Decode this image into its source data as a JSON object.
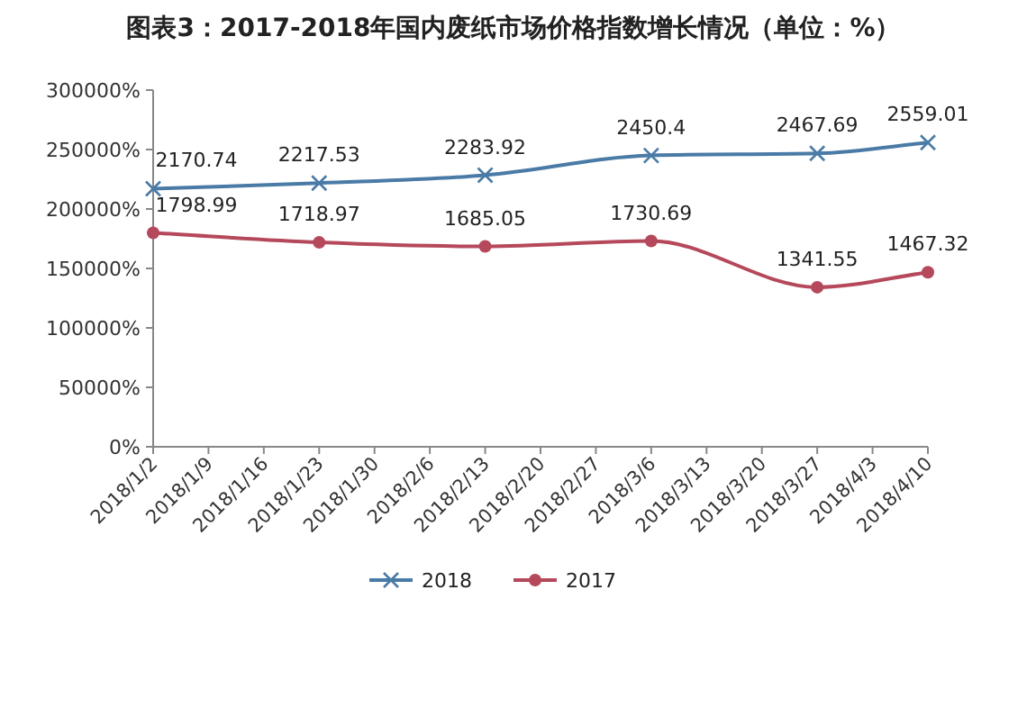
{
  "chart_data": {
    "type": "line",
    "title": "图表3：2017-2018年国内废纸市场价格指数增长情况（单位：%）",
    "x": [
      "2018-01-02",
      "2018-01-23",
      "2018-02-13",
      "2018-03-06",
      "2018-03-27",
      "2018-04-10"
    ],
    "xlim": [
      "2018-01-02",
      "2018-04-10"
    ],
    "xticks": [
      {
        "value": "2018-01-02",
        "label": "2018/1/2"
      },
      {
        "value": "2018-01-09",
        "label": "2018/1/9"
      },
      {
        "value": "2018-01-16",
        "label": "2018/1/16"
      },
      {
        "value": "2018-01-23",
        "label": "2018/1/23"
      },
      {
        "value": "2018-01-30",
        "label": "2018/1/30"
      },
      {
        "value": "2018-02-06",
        "label": "2018/2/6"
      },
      {
        "value": "2018-02-13",
        "label": "2018/2/13"
      },
      {
        "value": "2018-02-20",
        "label": "2018/2/20"
      },
      {
        "value": "2018-02-27",
        "label": "2018/2/27"
      },
      {
        "value": "2018-03-06",
        "label": "2018/3/6"
      },
      {
        "value": "2018-03-13",
        "label": "2018/3/13"
      },
      {
        "value": "2018-03-20",
        "label": "2018/3/20"
      },
      {
        "value": "2018-03-27",
        "label": "2018/3/27"
      },
      {
        "value": "2018-04-03",
        "label": "2018/4/3"
      },
      {
        "value": "2018-04-10",
        "label": "2018/4/10"
      }
    ],
    "ylim": [
      0,
      3000
    ],
    "yticks": [
      {
        "value": 0,
        "label": "0%"
      },
      {
        "value": 500,
        "label": "50000%"
      },
      {
        "value": 1000,
        "label": "100000%"
      },
      {
        "value": 1500,
        "label": "150000%"
      },
      {
        "value": 2000,
        "label": "200000%"
      },
      {
        "value": 2500,
        "label": "250000%"
      },
      {
        "value": 3000,
        "label": "300000%"
      }
    ],
    "series": [
      {
        "name": "2018",
        "color": "#4a7ba6",
        "marker": "cross",
        "values": [
          2170.74,
          2217.53,
          2283.92,
          2450.4,
          2467.69,
          2559.01
        ]
      },
      {
        "name": "2017",
        "color": "#b5495b",
        "marker": "circle",
        "values": [
          1798.99,
          1718.97,
          1685.05,
          1730.69,
          1341.55,
          1467.32
        ]
      }
    ],
    "data_labels": true,
    "legend": "bottom",
    "grid": false
  }
}
